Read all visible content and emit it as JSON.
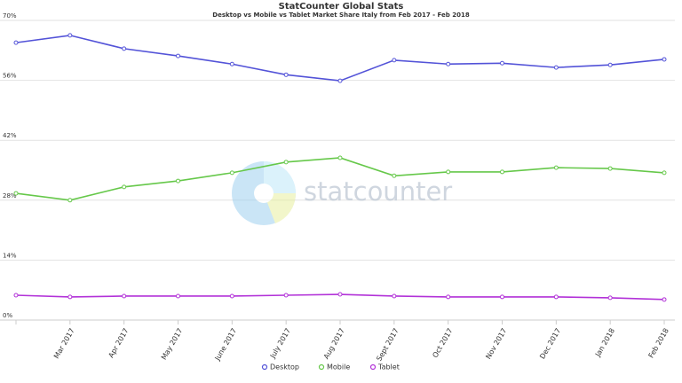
{
  "chart_data": {
    "type": "line",
    "title": "StatCounter Global Stats",
    "subtitle": "Desktop vs Mobile vs Tablet Market Share Italy from Feb 2017 - Feb 2018",
    "watermark": "statcounter",
    "categories": [
      null,
      "Mar 2017",
      "Apr 2017",
      "May 2017",
      "June 2017",
      "July 2017",
      "Aug 2017",
      "Sept 2017",
      "Oct 2017",
      "Nov 2017",
      "Dec 2017",
      "Jan 2018",
      "Feb 2018"
    ],
    "series": [
      {
        "name": "Desktop",
        "color": "#5353d8",
        "values": [
          64.8,
          66.5,
          63.4,
          61.7,
          59.8,
          57.3,
          55.9,
          60.7,
          59.8,
          60.0,
          59.0,
          59.6,
          60.9
        ]
      },
      {
        "name": "Mobile",
        "color": "#66c84a",
        "values": [
          29.6,
          28.0,
          31.1,
          32.5,
          34.4,
          36.9,
          37.9,
          33.7,
          34.6,
          34.6,
          35.6,
          35.4,
          34.4
        ]
      },
      {
        "name": "Tablet",
        "color": "#b232d8",
        "values": [
          5.8,
          5.4,
          5.6,
          5.6,
          5.6,
          5.8,
          6.0,
          5.6,
          5.4,
          5.4,
          5.4,
          5.2,
          4.8
        ]
      }
    ],
    "ylim": [
      0,
      70
    ],
    "yticks": [
      {
        "value": 0,
        "label": "0%"
      },
      {
        "value": 14,
        "label": "14%"
      },
      {
        "value": 28,
        "label": "28%"
      },
      {
        "value": 42,
        "label": "42%"
      },
      {
        "value": 56,
        "label": "56%"
      },
      {
        "value": 70,
        "label": "70%"
      }
    ],
    "grid": true,
    "legend": "bottom"
  }
}
